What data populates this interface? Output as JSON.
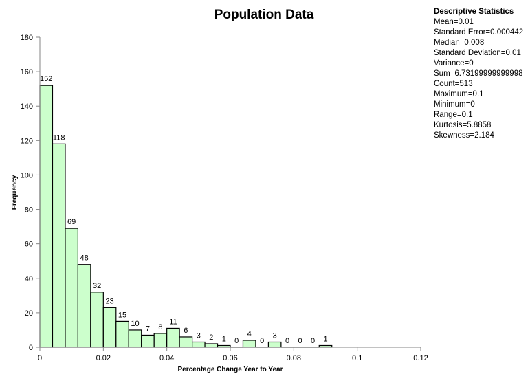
{
  "chart_data": {
    "type": "bar",
    "title": "Population Data",
    "xlabel": "Percentage Change Year to Year",
    "ylabel": "Frequency",
    "bin_start": 0,
    "bin_width": 0.004,
    "values": [
      152,
      118,
      69,
      48,
      32,
      23,
      15,
      10,
      7,
      8,
      11,
      6,
      3,
      2,
      1,
      0,
      4,
      0,
      3,
      0,
      0,
      0,
      1
    ],
    "xlim": [
      0,
      0.12
    ],
    "ylim": [
      0,
      180
    ],
    "x_ticks": [
      "0",
      "0.02",
      "0.04",
      "0.06",
      "0.08",
      "0.1",
      "0.12"
    ],
    "y_ticks": [
      "0",
      "20",
      "40",
      "60",
      "80",
      "100",
      "120",
      "140",
      "160",
      "180"
    ],
    "grid": false,
    "bar_color": "#ccffcc",
    "bar_edge_color": "#000000"
  },
  "stats": {
    "heading": "Descriptive Statistics",
    "lines": [
      "Mean=0.01",
      "Standard Error=0.000442",
      "Median=0.008",
      "Standard Deviation=0.01",
      "Variance=0",
      "Sum=6.73199999999998",
      "Count=513",
      "Maximum=0.1",
      "Minimum=0",
      "Range=0.1",
      "Kurtosis=5.8858",
      "Skewness=2.184"
    ]
  }
}
